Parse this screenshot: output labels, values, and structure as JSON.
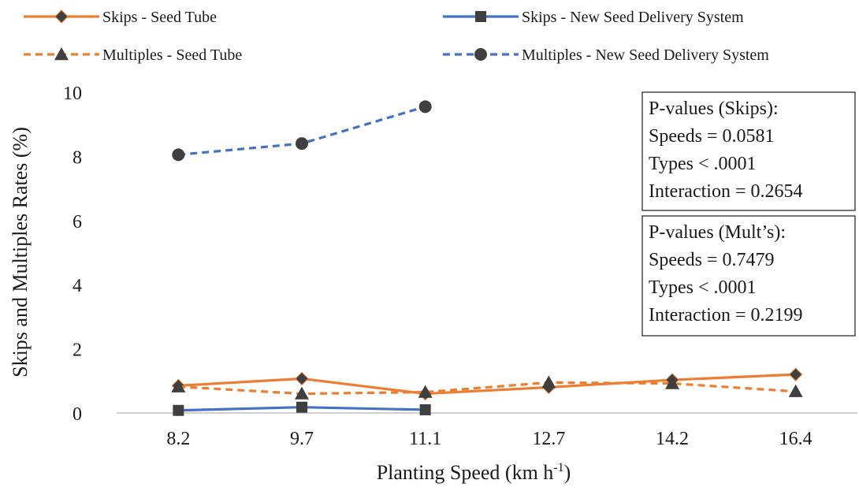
{
  "chart_data": {
    "type": "line",
    "xlabel": "Planting Speed (km h",
    "xlabel_sup": "-1",
    "xlabel_end": ")",
    "ylabel": "Skips and Multiples Rates (%)",
    "categories": [
      "8.2",
      "9.7",
      "11.1",
      "12.7",
      "14.2",
      "16.4"
    ],
    "ylim": [
      0,
      10
    ],
    "yticks": [
      "0",
      "2",
      "4",
      "6",
      "8",
      "10"
    ],
    "grid": false,
    "legend_position": "top",
    "series": [
      {
        "name": "Skips - Seed Tube",
        "values": [
          0.85,
          1.07,
          0.6,
          0.8,
          1.03,
          1.2
        ],
        "color": "#ED7D31",
        "dash": "solid",
        "marker": "diamond"
      },
      {
        "name": "Skips - New Seed Delivery System",
        "values": [
          0.08,
          0.18,
          0.1,
          null,
          null,
          null
        ],
        "color": "#4472C4",
        "dash": "solid",
        "marker": "square"
      },
      {
        "name": "Multiples - Seed Tube",
        "values": [
          0.82,
          0.6,
          0.65,
          0.95,
          0.92,
          0.67
        ],
        "color": "#ED7D31",
        "dash": "dashed",
        "marker": "triangle"
      },
      {
        "name": "Multiples - New Seed Delivery System",
        "values": [
          8.05,
          8.4,
          9.55,
          null,
          null,
          null
        ],
        "color": "#4472C4",
        "dash": "dashed",
        "marker": "circle"
      }
    ],
    "annotations": [
      {
        "lines": [
          "P-values (Skips):",
          "Speeds = 0.0581",
          "Types < .0001",
          "Interaction = 0.2654"
        ]
      },
      {
        "lines": [
          "P-values (Mult’s):",
          "Speeds = 0.7479",
          "Types < .0001",
          "Interaction = 0.2199"
        ]
      }
    ]
  }
}
